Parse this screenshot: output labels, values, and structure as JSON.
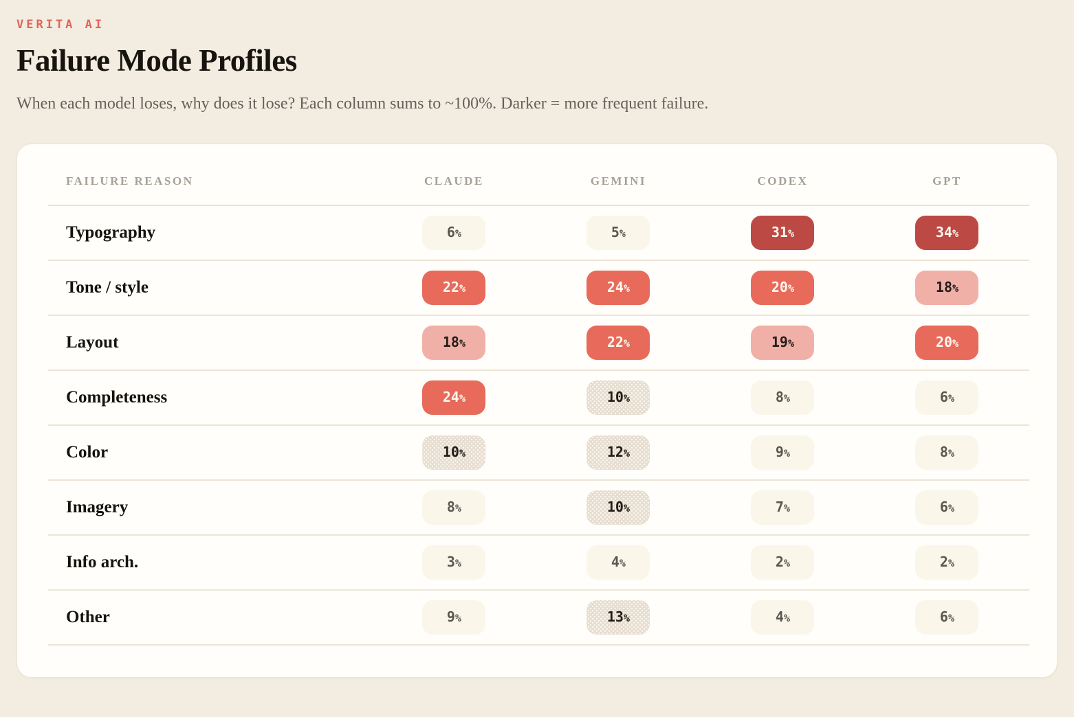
{
  "page": {
    "eyebrow": "VERITA AI",
    "title": "Failure Mode Profiles",
    "subtitle": "When each model loses, why does it lose? Each column sums to ~100%. Darker = more frequent failure."
  },
  "chart_data": {
    "type": "heatmap",
    "title": "Failure Mode Profiles",
    "row_header": "Failure reason",
    "columns": [
      "Claude",
      "Gemini",
      "Codex",
      "GPT"
    ],
    "rows": [
      {
        "label": "Typography",
        "values": [
          6,
          5,
          31,
          34
        ]
      },
      {
        "label": "Tone / style",
        "values": [
          22,
          24,
          20,
          18
        ]
      },
      {
        "label": "Layout",
        "values": [
          18,
          22,
          19,
          20
        ]
      },
      {
        "label": "Completeness",
        "values": [
          24,
          10,
          8,
          6
        ]
      },
      {
        "label": "Color",
        "values": [
          10,
          12,
          9,
          8
        ]
      },
      {
        "label": "Imagery",
        "values": [
          8,
          10,
          7,
          6
        ]
      },
      {
        "label": "Info arch.",
        "values": [
          3,
          4,
          2,
          2
        ]
      },
      {
        "label": "Other",
        "values": [
          9,
          13,
          4,
          6
        ]
      }
    ],
    "unit": "%",
    "legend": "Darker = more frequent failure",
    "value_scale_colors": {
      "30_plus": "#bc4943",
      "20_to_29": "#e86a5b",
      "15_to_19": "#f0b0a8",
      "10_to_14": "#e7ddd1",
      "under_10": "#faf6ea"
    },
    "accent_color": "#e2645a"
  }
}
